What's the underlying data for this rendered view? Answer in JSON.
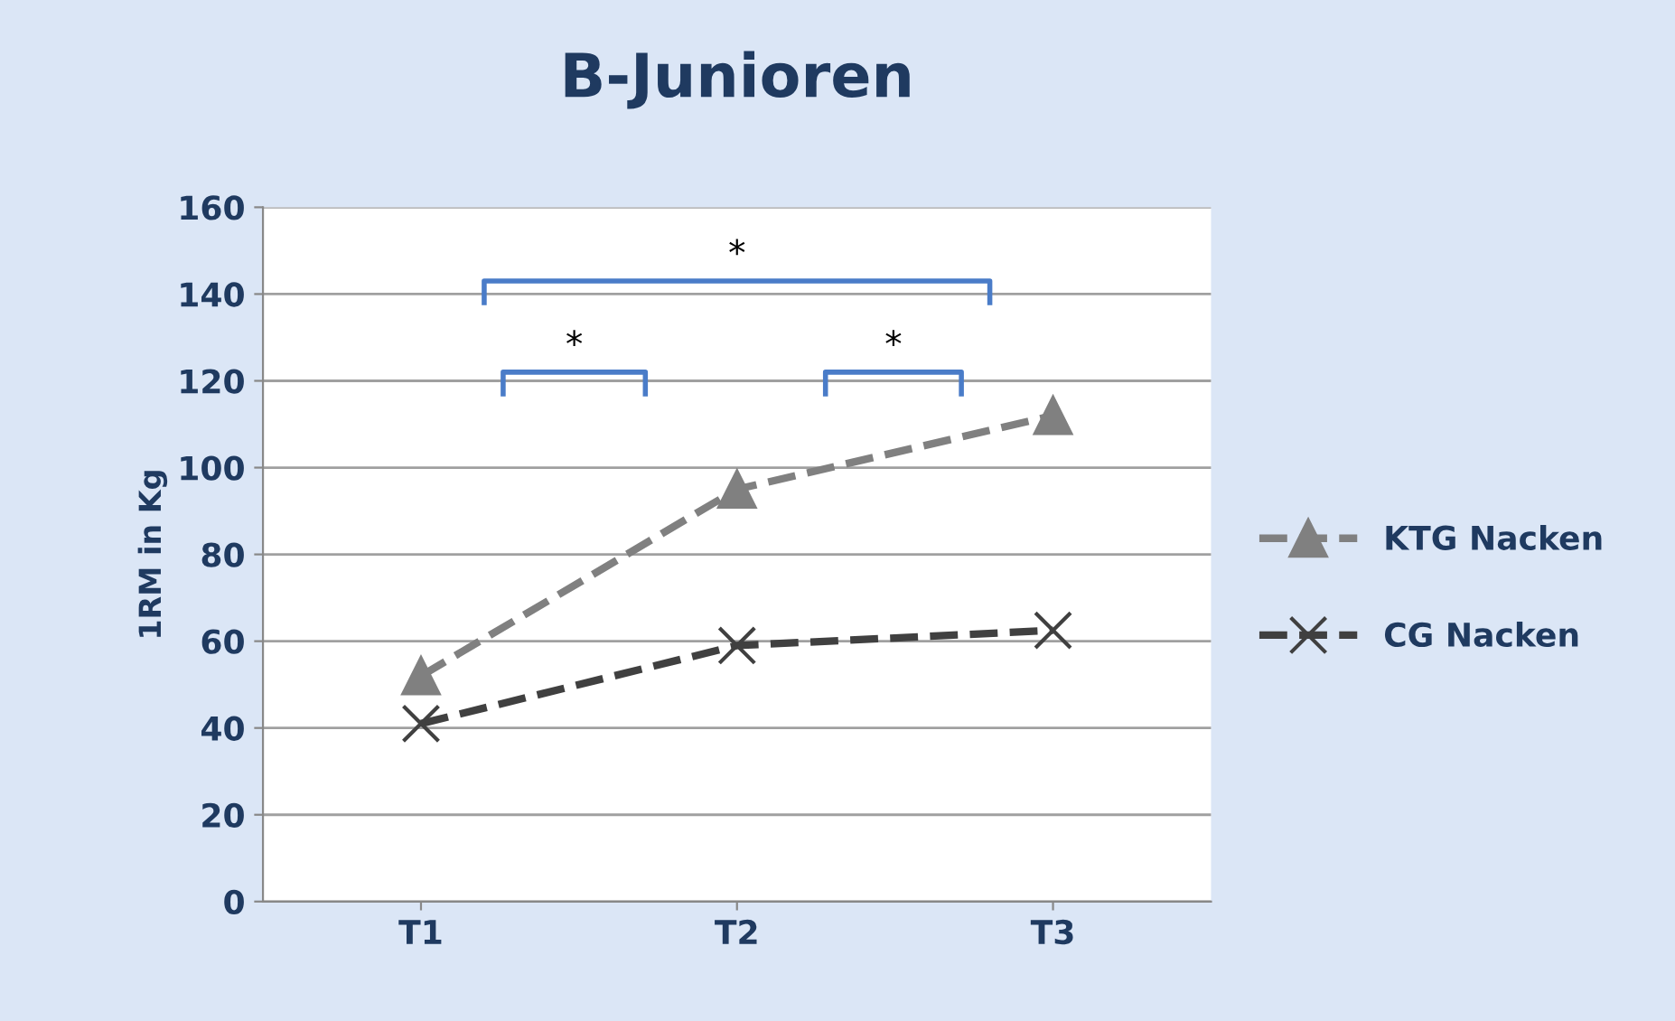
{
  "chart_data": {
    "type": "line",
    "title": "B-Junioren",
    "ylabel": "1RM in Kg",
    "categories": [
      "T1",
      "T2",
      "T3"
    ],
    "series": [
      {
        "name": "KTG Nacken",
        "color": "#808080",
        "marker": "triangle",
        "values": [
          52,
          95,
          112
        ]
      },
      {
        "name": "CG Nacken",
        "color": "#404040",
        "marker": "cross",
        "values": [
          41,
          59,
          62.5
        ]
      }
    ],
    "ylim": [
      0,
      160
    ],
    "yticks": [
      0,
      20,
      40,
      60,
      80,
      100,
      120,
      140,
      160
    ],
    "grid": "y",
    "legend": "right",
    "line_style": "dashed",
    "annotations": [
      "*",
      "*",
      "*"
    ]
  }
}
